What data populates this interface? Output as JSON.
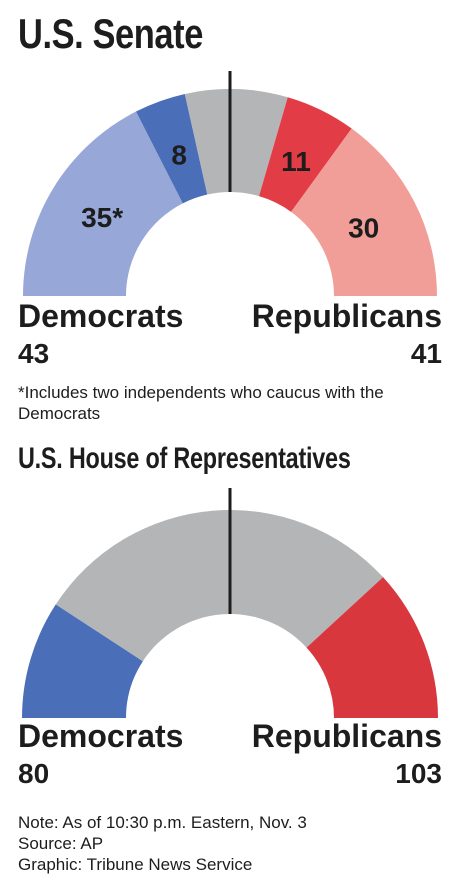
{
  "senate": {
    "title": "U.S. Senate",
    "democrats_label": "Democrats",
    "democrats_total": "43",
    "republicans_label": "Republicans",
    "republicans_total": "41",
    "footnote": "*Includes two independents who caucus with the Democrats"
  },
  "house": {
    "title": "U.S. House of Representatives",
    "democrats_label": "Democrats",
    "democrats_total": "80",
    "republicans_label": "Republicans",
    "republicans_total": "103"
  },
  "notes": {
    "note": "Note: As of 10:30 p.m. Eastern, Nov. 3",
    "source": "Source: AP",
    "graphic": "Graphic: Tribune News Service"
  },
  "colors": {
    "dem_light": "#97a8d8",
    "dem_dark": "#4a6fb8",
    "undecided": "#b4b5b7",
    "rep_dark": "#e23d46",
    "rep_light": "#f29e98",
    "house_dem": "#4a6fb8",
    "house_rep": "#d9373e",
    "midline": "#1d1d1d"
  },
  "chart_data": [
    {
      "type": "pie",
      "title": "U.S. Senate",
      "shape": "half-donut",
      "total_seats": 100,
      "segments": [
        {
          "label": "35*",
          "value": 35,
          "color": "#97a8d8"
        },
        {
          "label": "8",
          "value": 8,
          "color": "#4a6fb8"
        },
        {
          "label": "",
          "value": 16,
          "color": "#b4b5b7"
        },
        {
          "label": "11",
          "value": 11,
          "color": "#e23d46"
        },
        {
          "label": "30",
          "value": 30,
          "color": "#f29e98"
        }
      ],
      "totals": {
        "Democrats": 43,
        "Republicans": 41
      },
      "majority_line": 50
    },
    {
      "type": "pie",
      "title": "U.S. House of Representatives",
      "shape": "half-donut",
      "total_seats": 435,
      "segments": [
        {
          "label": "",
          "value": 80,
          "color": "#4a6fb8"
        },
        {
          "label": "",
          "value": 252,
          "color": "#b4b5b7"
        },
        {
          "label": "",
          "value": 103,
          "color": "#d9373e"
        }
      ],
      "totals": {
        "Democrats": 80,
        "Republicans": 103
      },
      "majority_line": 217.5
    }
  ]
}
